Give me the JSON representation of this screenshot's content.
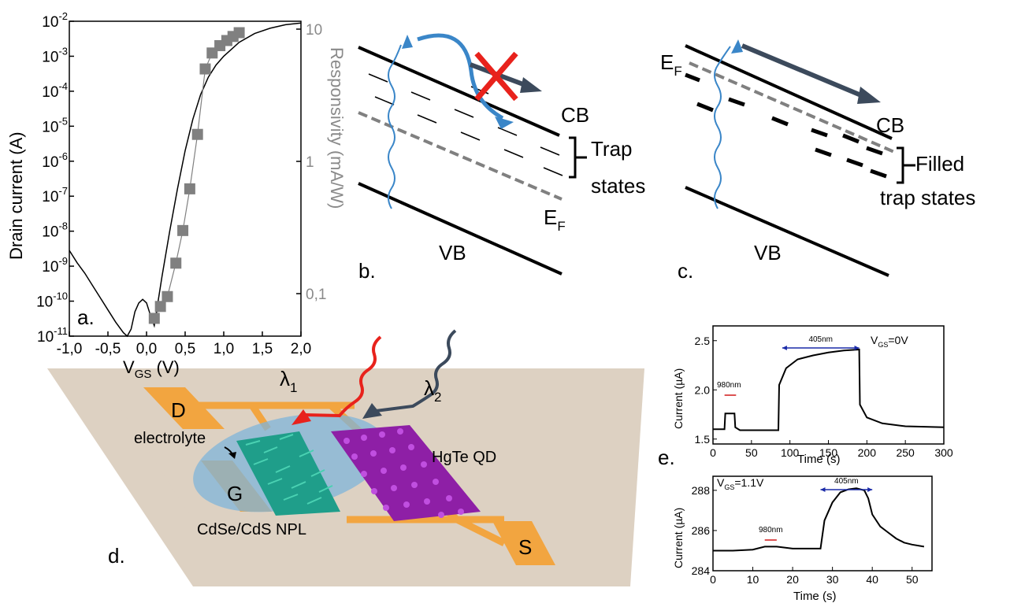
{
  "panel_labels": {
    "a": "a.",
    "b": "b.",
    "c": "c.",
    "d": "d.",
    "e": "e."
  },
  "chart_data": [
    {
      "id": "a",
      "type": "line",
      "xlabel_main": "V",
      "xlabel_sub": "GS",
      "xlabel_unit": " (V)",
      "ylabel": "Drain current (A)",
      "y2label": "Responsivity (mA/W)",
      "x_ticks": [
        "-1,0",
        "-0,5",
        "0,0",
        "0,5",
        "1,0",
        "1,5",
        "2,0"
      ],
      "x_tick_values": [
        -1.0,
        -0.5,
        0.0,
        0.5,
        1.0,
        1.5,
        2.0
      ],
      "xlim": [
        -1.0,
        2.0
      ],
      "y_log": true,
      "y_tick_base": "10",
      "y_tick_exponents": [
        "-2",
        "-3",
        "-4",
        "-5",
        "-6",
        "-7",
        "-8",
        "-9",
        "-10",
        "-11"
      ],
      "ylim_exponent": [
        -11,
        -2
      ],
      "y2_log": true,
      "y2_ticks": [
        "10",
        "1",
        "0,1"
      ],
      "y2_tick_values": [
        10,
        1,
        0.1
      ],
      "series": [
        {
          "kind": "line",
          "x": [
            -1.0,
            -0.9,
            -0.8,
            -0.7,
            -0.6,
            -0.5,
            -0.4,
            -0.3,
            -0.25,
            -0.2,
            -0.15,
            -0.1,
            -0.05,
            0.0,
            0.05,
            0.1,
            0.15,
            0.2,
            0.3,
            0.4,
            0.5,
            0.6,
            0.7,
            0.8,
            0.9,
            1.0,
            1.2,
            1.4,
            1.6,
            1.8,
            2.0
          ],
          "y_log10": [
            -8.55,
            -8.9,
            -9.2,
            -9.55,
            -9.9,
            -10.25,
            -10.6,
            -10.9,
            -11.0,
            -10.8,
            -10.3,
            -10.05,
            -9.95,
            -10.05,
            -10.4,
            -10.7,
            -10.0,
            -9.3,
            -8.0,
            -6.8,
            -5.7,
            -4.8,
            -4.1,
            -3.6,
            -3.25,
            -3.0,
            -2.6,
            -2.35,
            -2.2,
            -2.1,
            -2.05
          ]
        },
        {
          "kind": "scatter",
          "axis": "right",
          "x": [
            0.1,
            0.18,
            0.27,
            0.38,
            0.47,
            0.56,
            0.66,
            0.76,
            0.85,
            0.95,
            1.04,
            1.12,
            1.2
          ],
          "y": [
            0.065,
            0.08,
            0.095,
            0.17,
            0.3,
            0.62,
            1.6,
            5.0,
            6.6,
            7.5,
            8.2,
            8.8,
            9.4
          ]
        }
      ]
    },
    {
      "id": "e-top",
      "type": "line",
      "xlabel": "Time (s)",
      "ylabel": "Current (µA)",
      "x_ticks": [
        "0",
        "50",
        "100",
        "150",
        "200",
        "250",
        "300"
      ],
      "xlim": [
        0,
        300
      ],
      "y_ticks": [
        "1.5",
        "2.0",
        "2.5"
      ],
      "ylim": [
        1.45,
        2.65
      ],
      "annotation_vgs": "V",
      "annotation_vgs_sub": "GS",
      "annotation_vgs_val": "=0V",
      "pulses": [
        {
          "label": "980nm",
          "x": [
            15,
            30
          ]
        },
        {
          "label": "405nm",
          "x": [
            90,
            190
          ]
        }
      ],
      "series": [
        {
          "x": [
            0,
            10,
            15,
            16,
            28,
            29,
            35,
            85,
            86,
            95,
            110,
            130,
            150,
            170,
            190,
            191,
            200,
            220,
            250,
            300
          ],
          "y": [
            1.6,
            1.6,
            1.6,
            1.76,
            1.76,
            1.62,
            1.59,
            1.59,
            2.05,
            2.22,
            2.31,
            2.35,
            2.38,
            2.4,
            2.41,
            1.85,
            1.72,
            1.66,
            1.63,
            1.62
          ]
        }
      ]
    },
    {
      "id": "e-bottom",
      "type": "line",
      "xlabel": "Time (s)",
      "ylabel": "Current (µA)",
      "x_ticks": [
        "0",
        "10",
        "20",
        "30",
        "40",
        "50"
      ],
      "xlim": [
        0,
        55
      ],
      "y_ticks": [
        "284",
        "286",
        "288"
      ],
      "ylim": [
        284,
        288.7
      ],
      "annotation_vgs": "V",
      "annotation_vgs_sub": "GS",
      "annotation_vgs_val": "=1.1V",
      "pulses": [
        {
          "label": "980nm",
          "x": [
            13,
            16
          ]
        },
        {
          "label": "405nm",
          "x": [
            27,
            40
          ]
        }
      ],
      "series": [
        {
          "x": [
            0,
            5,
            10,
            13,
            16,
            20,
            27,
            28,
            30,
            32,
            34,
            36,
            38,
            39,
            40,
            42,
            44,
            46,
            48,
            50,
            53
          ],
          "y": [
            285,
            285,
            285.05,
            285.2,
            285.2,
            285.1,
            285.1,
            286.5,
            287.4,
            287.9,
            288.05,
            288.1,
            288.0,
            287.6,
            286.8,
            286.2,
            285.9,
            285.6,
            285.4,
            285.3,
            285.2
          ]
        }
      ]
    }
  ],
  "diagram_b": {
    "cb": "CB",
    "vb": "VB",
    "ef_main": "E",
    "ef_sub": "F",
    "trap_line1": "Trap",
    "trap_line2": "states"
  },
  "diagram_c": {
    "cb": "CB",
    "vb": "VB",
    "ef_main": "E",
    "ef_sub": "F",
    "trap_line1": "Filled",
    "trap_line2": "trap states"
  },
  "device_d": {
    "electrode_d": "D",
    "electrode_g": "G",
    "electrode_s": "S",
    "electrolyte": "electrolyte",
    "hgte": "HgTe QD",
    "npl": "CdSe/CdS NPL",
    "lambda1_main": "λ",
    "lambda1_sub": "1",
    "lambda2_main": "λ",
    "lambda2_sub": "2",
    "colors": {
      "substrate": "#ddd1c2",
      "electrode": "#f2a540",
      "electrolyte": "#7fb4da",
      "npl": "#1f9e8a",
      "qd": "#8e1fa6",
      "red": "#e8221c",
      "dark": "#3c4a5c"
    }
  }
}
